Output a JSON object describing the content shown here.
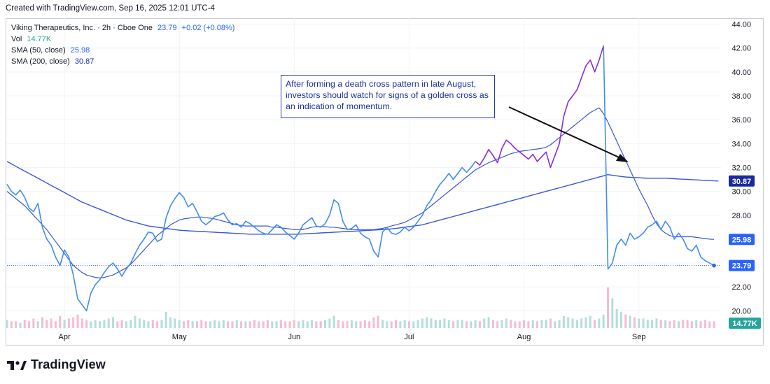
{
  "header": {
    "created": "Created with TradingView.com, Sep 16, 2025 12:01 UTC-4"
  },
  "legend": {
    "symbol": "Viking Therapeutics, Inc. · 2h · Cboe One",
    "price": "23.79",
    "change": "+0.02 (+0.08%)",
    "vol_label": "Vol",
    "vol_value": "14.77K",
    "sma50_label": "SMA (50, close)",
    "sma50_value": "25.98",
    "sma200_label": "SMA (200, close)",
    "sma200_value": "30.87"
  },
  "annotation": "After forming a death cross pattern in late August, investors should watch for signs of a golden cross as an indication of momentum.",
  "footer": {
    "brand": "TradingView"
  },
  "colors": {
    "price_line": "#2962ff",
    "price_line_light": "#3f8cf5",
    "price_line_highlight": "#8a2be2",
    "sma": "#3a56d8",
    "volume_up": "#b2dfdb",
    "volume_down": "#f8bbd0",
    "annotation_text": "#1c2fa0",
    "badge_price": "#2962ff",
    "badge_sma200": "#1a2a9e",
    "badge_vol": "#26a69a"
  },
  "chart_data": {
    "type": "line",
    "title": "Viking Therapeutics, Inc. · 2h · Cboe One",
    "xlabel": "",
    "ylabel": "",
    "ylim": [
      18.5,
      44.5
    ],
    "y_ticks": [
      "20.00",
      "22.00",
      "24.00",
      "26.00",
      "28.00",
      "30.00",
      "32.00",
      "34.00",
      "36.00",
      "38.00",
      "40.00",
      "42.00",
      "44.00"
    ],
    "x_ticks": [
      "Apr",
      "May",
      "Jun",
      "Jul",
      "Aug",
      "Sep"
    ],
    "x_tick_index": [
      13,
      39,
      65,
      91,
      117,
      143
    ],
    "price_badges": [
      {
        "label": "30.87",
        "value": 30.87,
        "series": "SMA (200, close)"
      },
      {
        "label": "25.98",
        "value": 25.98,
        "series": "SMA (50, close)"
      },
      {
        "label": "23.79",
        "value": 23.79,
        "series": "Price"
      }
    ],
    "volume_badge": "14.77K",
    "series": [
      {
        "name": "Price",
        "values": [
          30.6,
          30.0,
          29.7,
          30.1,
          29.5,
          28.6,
          28.3,
          29.0,
          27.0,
          26.0,
          25.5,
          24.5,
          23.8,
          25.1,
          24.5,
          23.0,
          21.0,
          20.5,
          20.0,
          21.5,
          22.2,
          22.6,
          23.2,
          23.7,
          24.0,
          23.5,
          22.9,
          23.5,
          24.0,
          24.8,
          25.5,
          26.0,
          26.6,
          26.5,
          25.8,
          26.0,
          27.8,
          28.8,
          29.4,
          29.9,
          29.5,
          28.7,
          29.0,
          28.3,
          27.5,
          27.2,
          27.5,
          27.9,
          28.0,
          28.2,
          27.6,
          27.2,
          27.3,
          27.0,
          27.5,
          27.3,
          27.0,
          26.7,
          26.5,
          26.4,
          26.8,
          27.2,
          27.0,
          26.6,
          26.3,
          26.0,
          26.5,
          27.2,
          27.5,
          27.8,
          27.1,
          27.0,
          27.3,
          28.0,
          29.3,
          29.0,
          27.5,
          26.8,
          26.9,
          27.2,
          26.5,
          26.2,
          26.0,
          25.0,
          24.5,
          26.6,
          27.0,
          26.5,
          26.4,
          26.6,
          27.0,
          26.7,
          27.0,
          27.5,
          28.0,
          28.8,
          29.3,
          30.0,
          30.6,
          31.0,
          31.5,
          31.0,
          31.5,
          32.0,
          31.6,
          32.0,
          32.5,
          32.2,
          32.8,
          33.5,
          33.0,
          32.4,
          33.6,
          34.3,
          34.0,
          33.6,
          33.3,
          33.0,
          32.7,
          33.1,
          32.5,
          32.9,
          33.3,
          32.0,
          33.0,
          34.0,
          36.3,
          37.5,
          38.0,
          38.5,
          39.5,
          40.5,
          41.0,
          40.0,
          41.0,
          42.2,
          23.5,
          24.0,
          25.5,
          26.0,
          25.5,
          26.5,
          26.0,
          26.2,
          26.5,
          27.0,
          27.2,
          27.5,
          26.8,
          27.5,
          27.0,
          26.0,
          26.5,
          26.0,
          25.2,
          25.0,
          25.5,
          24.5,
          24.2,
          24.0,
          23.79
        ]
      },
      {
        "name": "SMA (50, close)",
        "values": [
          30.0,
          29.7,
          29.4,
          29.1,
          28.8,
          28.4,
          28.0,
          27.6,
          27.2,
          26.8,
          26.3,
          25.8,
          25.3,
          24.8,
          24.3,
          23.8,
          23.5,
          23.2,
          23.0,
          22.9,
          22.8,
          22.75,
          22.8,
          22.9,
          23.0,
          23.2,
          23.4,
          23.6,
          23.9,
          24.3,
          24.7,
          25.1,
          25.5,
          25.9,
          26.3,
          26.6,
          26.9,
          27.2,
          27.4,
          27.6,
          27.7,
          27.75,
          27.8,
          27.85,
          27.85,
          27.8,
          27.75,
          27.7,
          27.6,
          27.5,
          27.4,
          27.3,
          27.2,
          27.15,
          27.1,
          27.1,
          27.1,
          27.1,
          27.1,
          27.1,
          27.0,
          27.0,
          26.95,
          26.9,
          26.85,
          26.8,
          26.8,
          26.8,
          26.9,
          27.0,
          27.05,
          27.05,
          27.05,
          27.0,
          27.0,
          26.95,
          26.9,
          26.85,
          26.8,
          26.8,
          26.8,
          26.8,
          26.8,
          26.8,
          26.85,
          26.9,
          27.0,
          27.1,
          27.2,
          27.3,
          27.4,
          27.6,
          27.8,
          28.0,
          28.2,
          28.5,
          28.8,
          29.1,
          29.4,
          29.7,
          30.0,
          30.3,
          30.6,
          30.9,
          31.2,
          31.5,
          31.8,
          32.0,
          32.2,
          32.4,
          32.55,
          32.7,
          32.85,
          33.0,
          33.15,
          33.25,
          33.35,
          33.4,
          33.45,
          33.5,
          33.55,
          33.6,
          33.7,
          33.9,
          34.2,
          34.5,
          34.8,
          35.1,
          35.4,
          35.7,
          36.0,
          36.3,
          36.6,
          36.8,
          37.0,
          36.5,
          35.8,
          35.0,
          34.2,
          33.4,
          32.6,
          31.8,
          31.0,
          30.2,
          29.5,
          28.8,
          28.0,
          27.3,
          26.8,
          26.5,
          26.3,
          26.2,
          26.2,
          26.2,
          26.2,
          26.2,
          26.15,
          26.1,
          26.05,
          26.0,
          25.98
        ]
      },
      {
        "name": "SMA (200, close)",
        "values": [
          32.5,
          32.3,
          32.1,
          31.9,
          31.7,
          31.5,
          31.3,
          31.1,
          30.9,
          30.7,
          30.5,
          30.3,
          30.1,
          29.9,
          29.7,
          29.5,
          29.3,
          29.1,
          28.95,
          28.8,
          28.65,
          28.5,
          28.35,
          28.2,
          28.05,
          27.9,
          27.75,
          27.6,
          27.5,
          27.4,
          27.3,
          27.2,
          27.1,
          27.05,
          27.0,
          26.95,
          26.9,
          26.85,
          26.8,
          26.75,
          26.72,
          26.7,
          26.68,
          26.66,
          26.64,
          26.62,
          26.6,
          26.58,
          26.56,
          26.54,
          26.52,
          26.5,
          26.48,
          26.46,
          26.44,
          26.42,
          26.42,
          26.42,
          26.42,
          26.42,
          26.42,
          26.42,
          26.42,
          26.42,
          26.42,
          26.42,
          26.42,
          26.44,
          26.46,
          26.48,
          26.5,
          26.52,
          26.54,
          26.56,
          26.58,
          26.6,
          26.62,
          26.64,
          26.66,
          26.68,
          26.7,
          26.72,
          26.74,
          26.76,
          26.78,
          26.8,
          26.82,
          26.86,
          26.9,
          26.95,
          27.0,
          27.05,
          27.1,
          27.15,
          27.2,
          27.3,
          27.4,
          27.5,
          27.6,
          27.7,
          27.8,
          27.9,
          28.0,
          28.1,
          28.2,
          28.3,
          28.4,
          28.5,
          28.6,
          28.7,
          28.8,
          28.9,
          29.0,
          29.1,
          29.2,
          29.3,
          29.4,
          29.5,
          29.6,
          29.7,
          29.8,
          29.9,
          30.0,
          30.1,
          30.2,
          30.3,
          30.4,
          30.5,
          30.6,
          30.7,
          30.8,
          30.9,
          31.0,
          31.1,
          31.2,
          31.3,
          31.4,
          31.35,
          31.3,
          31.25,
          31.2,
          31.18,
          31.16,
          31.14,
          31.12,
          31.1,
          31.1,
          31.1,
          31.1,
          31.1,
          31.08,
          31.06,
          31.04,
          31.02,
          31.0,
          30.98,
          30.96,
          30.94,
          30.92,
          30.9,
          30.88,
          30.87
        ]
      },
      {
        "name": "Vol",
        "values": [
          6,
          5,
          5,
          4,
          6,
          5,
          7,
          5,
          8,
          6,
          7,
          5,
          9,
          6,
          7,
          8,
          10,
          7,
          6,
          5,
          6,
          5,
          6,
          7,
          8,
          5,
          6,
          5,
          6,
          9,
          7,
          6,
          5,
          6,
          5,
          6,
          12,
          8,
          7,
          6,
          5,
          6,
          5,
          5,
          6,
          5,
          5,
          6,
          5,
          6,
          5,
          5,
          6,
          5,
          5,
          5,
          6,
          5,
          5,
          6,
          5,
          5,
          6,
          5,
          5,
          6,
          5,
          6,
          5,
          6,
          5,
          5,
          6,
          7,
          9,
          6,
          5,
          5,
          6,
          5,
          5,
          6,
          5,
          8,
          9,
          6,
          5,
          5,
          6,
          5,
          6,
          5,
          5,
          6,
          7,
          8,
          7,
          6,
          6,
          7,
          6,
          5,
          6,
          6,
          5,
          5,
          6,
          5,
          7,
          8,
          6,
          5,
          6,
          7,
          6,
          5,
          5,
          6,
          5,
          6,
          5,
          6,
          6,
          7,
          5,
          6,
          9,
          8,
          7,
          6,
          7,
          8,
          9,
          6,
          7,
          10,
          30,
          22,
          14,
          12,
          10,
          9,
          8,
          7,
          7,
          6,
          6,
          7,
          6,
          6,
          5,
          6,
          5,
          6,
          6,
          5,
          6,
          5,
          6,
          5,
          5
        ]
      }
    ]
  }
}
